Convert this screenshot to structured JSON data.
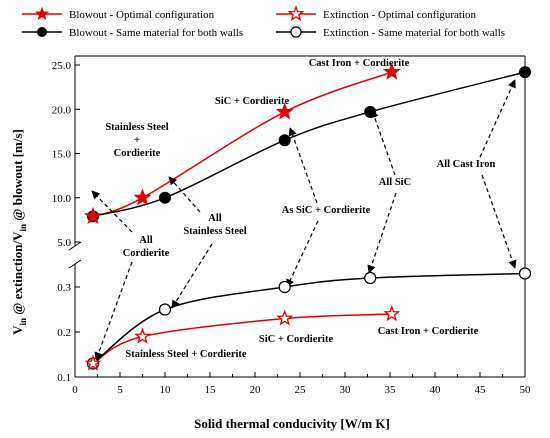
{
  "chart_data": {
    "type": "line",
    "xlabel": "Solid thermal conducivity [W/m K]",
    "ylabel": "V_in @ extinction/V_in @ blowout [m/s]",
    "xlim": [
      0,
      50
    ],
    "x_ticks": [
      "0",
      "5",
      "10",
      "15",
      "20",
      "25",
      "30",
      "35",
      "40",
      "45",
      "50"
    ],
    "upper_panel": {
      "ylim": [
        5.0,
        25.0
      ],
      "y_ticks": [
        "5.0",
        "10.0",
        "15.0",
        "20.0",
        "25.0"
      ]
    },
    "lower_panel": {
      "ylim": [
        0.1,
        0.3
      ],
      "y_ticks": [
        "0.1",
        "0.2",
        "0.3"
      ]
    },
    "axis_break": true,
    "legend_position": "top",
    "series": [
      {
        "name": "Blowout - Optimal configuration",
        "panel": "upper",
        "marker": "filled-star",
        "color": "#e00000",
        "x": [
          2,
          7.5,
          23.3,
          35.2
        ],
        "y": [
          7.9,
          10.0,
          19.7,
          24.2
        ]
      },
      {
        "name": "Blowout - Same material for both walls",
        "panel": "upper",
        "marker": "filled-circle",
        "color": "#000000",
        "x": [
          2,
          10,
          23.3,
          32.8,
          50
        ],
        "y": [
          7.9,
          10.0,
          16.5,
          19.7,
          24.2
        ]
      },
      {
        "name": "Extinction - Optimal configuration",
        "panel": "lower",
        "marker": "open-star",
        "color": "#e00000",
        "x": [
          2,
          7.5,
          23.3,
          35.2
        ],
        "y": [
          0.13,
          0.19,
          0.23,
          0.24
        ]
      },
      {
        "name": "Extinction - Same material for both walls",
        "panel": "lower",
        "marker": "open-circle",
        "color": "#000000",
        "x": [
          2,
          10,
          23.3,
          32.8,
          50
        ],
        "y": [
          0.13,
          0.25,
          0.3,
          0.32,
          0.33
        ]
      }
    ],
    "annotations": [
      {
        "text": "Cast Iron + Cordierite",
        "lines": [
          "Cast Iron + Cordierite"
        ]
      },
      {
        "text": "SiC + Cordierite",
        "lines": [
          "SiC + Cordierite"
        ]
      },
      {
        "text": "Stainless Steel + Cordierite",
        "lines": [
          "Stainless Steel",
          "+",
          "Cordierite"
        ]
      },
      {
        "text": "All Cordierite",
        "lines": [
          "All",
          "Cordierite"
        ]
      },
      {
        "text": "All Stainless Steel",
        "lines": [
          "All",
          "Stainless Steel"
        ]
      },
      {
        "text": "As SiC + Cordierite",
        "lines": [
          "As SiC + Cordierite"
        ]
      },
      {
        "text": "All SiC",
        "lines": [
          "All SiC"
        ]
      },
      {
        "text": "All Cast Iron",
        "lines": [
          "All Cast Iron"
        ]
      },
      {
        "text": "Stainless Steel + Cordierite",
        "lines": [
          "Stainless Steel + Cordierite"
        ]
      },
      {
        "text": "SiC + Cordierite",
        "lines": [
          "SiC + Cordierite"
        ]
      },
      {
        "text": "Cast Iron + Cordierite",
        "lines": [
          "Cast Iron + Cordierite"
        ]
      }
    ]
  }
}
